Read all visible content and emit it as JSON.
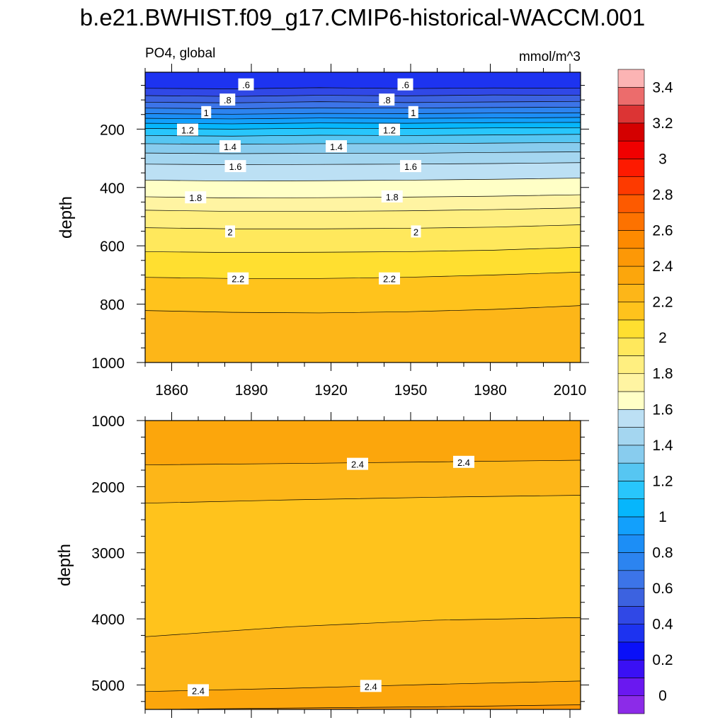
{
  "title": "b.e21.BWHIST.f09_g17.CMIP6-historical-WACCM.001",
  "subtitle_left": "PO4, global",
  "subtitle_right": "mmol/m^3",
  "chart_data": [
    {
      "type": "contour",
      "panel": "upper",
      "xlabel": "",
      "ylabel": "depth",
      "xlim": [
        1850,
        2014
      ],
      "ylim": [
        1000,
        5
      ],
      "x_ticks": [
        1860,
        1890,
        1920,
        1950,
        1980,
        2010
      ],
      "x_tick_labels": [
        "1860",
        "1890",
        "1920",
        "1950",
        "1980",
        "2010"
      ],
      "y_ticks": [
        200,
        400,
        600,
        800,
        1000
      ],
      "y_tick_labels": [
        "200",
        "400",
        "600",
        "800",
        "1000"
      ],
      "contour_interval": 0.1,
      "contours": [
        {
          "level": 0.5,
          "depth": [
            60,
            62,
            58,
            61,
            59,
            60
          ]
        },
        {
          "level": 0.6,
          "depth": [
            85,
            88,
            84,
            86,
            83,
            84
          ]
        },
        {
          "level": 0.7,
          "depth": [
            108,
            110,
            106,
            109,
            107,
            105
          ]
        },
        {
          "level": 0.8,
          "depth": [
            128,
            130,
            127,
            128,
            126,
            125
          ]
        },
        {
          "level": 0.9,
          "depth": [
            147,
            149,
            146,
            147,
            145,
            144
          ]
        },
        {
          "level": 1.0,
          "depth": [
            163,
            165,
            162,
            163,
            162,
            160
          ]
        },
        {
          "level": 1.1,
          "depth": [
            180,
            182,
            179,
            180,
            178,
            177
          ]
        },
        {
          "level": 1.2,
          "depth": [
            198,
            200,
            197,
            198,
            196,
            195
          ]
        },
        {
          "level": 1.3,
          "depth": [
            222,
            224,
            221,
            222,
            220,
            218
          ]
        },
        {
          "level": 1.4,
          "depth": [
            250,
            252,
            250,
            250,
            248,
            246
          ]
        },
        {
          "level": 1.5,
          "depth": [
            282,
            284,
            283,
            283,
            280,
            278
          ]
        },
        {
          "level": 1.6,
          "depth": [
            320,
            322,
            321,
            320,
            318,
            315
          ]
        },
        {
          "level": 1.7,
          "depth": [
            375,
            378,
            377,
            375,
            372,
            368
          ]
        },
        {
          "level": 1.8,
          "depth": [
            432,
            436,
            435,
            433,
            430,
            425
          ]
        },
        {
          "level": 1.9,
          "depth": [
            478,
            482,
            482,
            480,
            476,
            470
          ]
        },
        {
          "level": 2.0,
          "depth": [
            538,
            542,
            542,
            540,
            536,
            528
          ]
        },
        {
          "level": 2.1,
          "depth": [
            620,
            623,
            622,
            620,
            615,
            605
          ]
        },
        {
          "level": 2.2,
          "depth": [
            708,
            712,
            712,
            708,
            700,
            690
          ]
        },
        {
          "level": 2.3,
          "depth": [
            822,
            828,
            830,
            826,
            818,
            805
          ]
        }
      ],
      "contour_labels": [
        {
          "text": ".6",
          "x": 1888,
          "y": 48
        },
        {
          "text": ".6",
          "x": 1948,
          "y": 48
        },
        {
          "text": ".8",
          "x": 1881,
          "y": 100
        },
        {
          "text": ".8",
          "x": 1941,
          "y": 100
        },
        {
          "text": "1",
          "x": 1873,
          "y": 143
        },
        {
          "text": "1",
          "x": 1951,
          "y": 143
        },
        {
          "text": "1.2",
          "x": 1866,
          "y": 203
        },
        {
          "text": "1.2",
          "x": 1942,
          "y": 203
        },
        {
          "text": "1.4",
          "x": 1882,
          "y": 260
        },
        {
          "text": "1.4",
          "x": 1922,
          "y": 260
        },
        {
          "text": "1.6",
          "x": 1884,
          "y": 328
        },
        {
          "text": "1.6",
          "x": 1950,
          "y": 328
        },
        {
          "text": "1.8",
          "x": 1869,
          "y": 435
        },
        {
          "text": "1.8",
          "x": 1943,
          "y": 432
        },
        {
          "text": "2",
          "x": 1882,
          "y": 552
        },
        {
          "text": "2",
          "x": 1952,
          "y": 552
        },
        {
          "text": "2.2",
          "x": 1885,
          "y": 713
        },
        {
          "text": "2.2",
          "x": 1942,
          "y": 713
        }
      ]
    },
    {
      "type": "contour",
      "panel": "lower",
      "xlabel": "",
      "ylabel": "depth",
      "xlim": [
        1850,
        2014
      ],
      "ylim": [
        5370,
        1000
      ],
      "x_ticks": [
        1860,
        1890,
        1920,
        1950,
        1980,
        2010
      ],
      "y_ticks": [
        1000,
        2000,
        3000,
        4000,
        5000
      ],
      "y_tick_labels": [
        "1000",
        "2000",
        "3000",
        "4000",
        "5000"
      ],
      "contour_interval": 0.1,
      "contours": [
        {
          "level": 2.4,
          "depth": [
            1670,
            1650,
            1625,
            1600
          ]
        },
        {
          "level": 2.3,
          "depth": [
            2250,
            2200,
            2160,
            2130
          ]
        },
        {
          "level": 2.3,
          "depth": [
            4270,
            4120,
            4020,
            3980
          ]
        },
        {
          "level": 2.4,
          "depth": [
            5100,
            5050,
            4990,
            4940
          ]
        },
        {
          "level": 2.5,
          "depth": [
            5370,
            5350,
            5330,
            5300
          ]
        }
      ],
      "contour_labels": [
        {
          "text": "2.4",
          "x": 1930,
          "y": 1660
        },
        {
          "text": "2.4",
          "x": 1970,
          "y": 1630
        },
        {
          "text": "2.4",
          "x": 1870,
          "y": 5085
        },
        {
          "text": "2.4",
          "x": 1935,
          "y": 5020
        }
      ]
    },
    {
      "type": "colorbar",
      "levels_from_bottom": [
        0,
        0.1,
        0.2,
        0.3,
        0.4,
        0.5,
        0.6,
        0.7,
        0.8,
        0.9,
        1,
        1.1,
        1.2,
        1.3,
        1.4,
        1.5,
        1.6,
        1.7,
        1.8,
        1.9,
        2,
        2.1,
        2.2,
        2.3,
        2.4,
        2.5,
        2.6,
        2.7,
        2.8,
        2.9,
        3,
        3.1,
        3.2,
        3.3,
        3.4,
        3.5
      ],
      "tick_labels_from_bottom": [
        "0",
        "0.2",
        "0.4",
        "0.6",
        "0.8",
        "1",
        "1.2",
        "1.4",
        "1.6",
        "1.8",
        "2",
        "2.2",
        "2.4",
        "2.6",
        "2.8",
        "3",
        "3.2",
        "3.4"
      ],
      "colors_from_bottom": [
        "#8c2be8",
        "#6a18f0",
        "#3a10f4",
        "#0a10f8",
        "#1d33f0",
        "#3048e6",
        "#3c62e0",
        "#3c74e8",
        "#2c84f0",
        "#1c8ef6",
        "#12a0fc",
        "#06b6fc",
        "#28c6fc",
        "#56c6f2",
        "#88ccee",
        "#a4d6f0",
        "#bce0f4",
        "#ffffc6",
        "#fff4a2",
        "#ffef80",
        "#ffe85c",
        "#ffdf30",
        "#ffc31c",
        "#fdb618",
        "#fca60c",
        "#fd9806",
        "#fd8a00",
        "#fd7200",
        "#fd5a00",
        "#fd3a00",
        "#fd1a00",
        "#f00000",
        "#d40000",
        "#dc3434",
        "#ec6c6c",
        "#fcb4b4"
      ]
    }
  ]
}
